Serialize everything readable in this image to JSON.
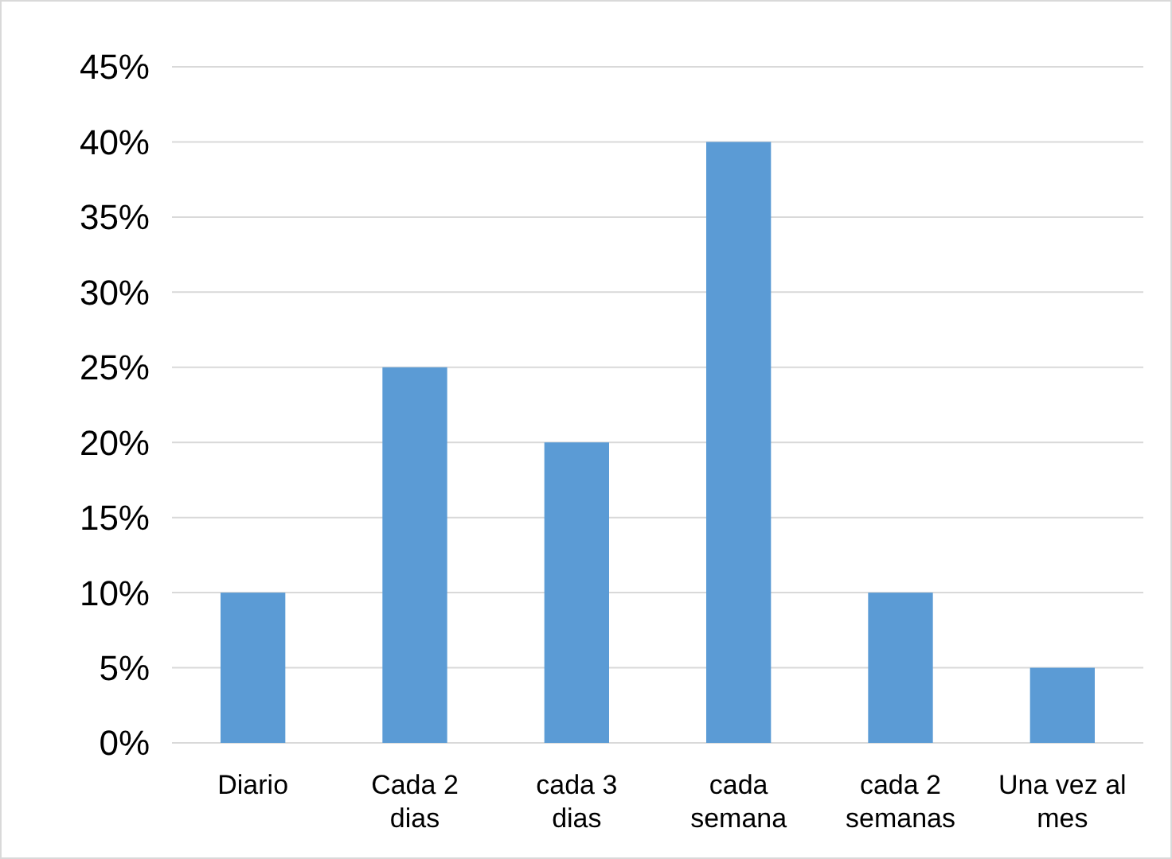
{
  "chart_data": {
    "type": "bar",
    "categories": [
      "Diario",
      "Cada 2 dias",
      "cada 3 dias",
      "cada semana",
      "cada 2 semanas",
      "Una vez al mes"
    ],
    "values": [
      10,
      25,
      20,
      40,
      10,
      5
    ],
    "color": "#5b9bd5",
    "ylim": [
      0,
      45
    ],
    "yticks": [
      {
        "value": 0,
        "label": "0%"
      },
      {
        "value": 5,
        "label": "5%"
      },
      {
        "value": 10,
        "label": "10%"
      },
      {
        "value": 15,
        "label": "15%"
      },
      {
        "value": 20,
        "label": "20%"
      },
      {
        "value": 25,
        "label": "25%"
      },
      {
        "value": 30,
        "label": "30%"
      },
      {
        "value": 35,
        "label": "35%"
      },
      {
        "value": 40,
        "label": "40%"
      },
      {
        "value": 45,
        "label": "45%"
      }
    ],
    "grid": "y"
  }
}
